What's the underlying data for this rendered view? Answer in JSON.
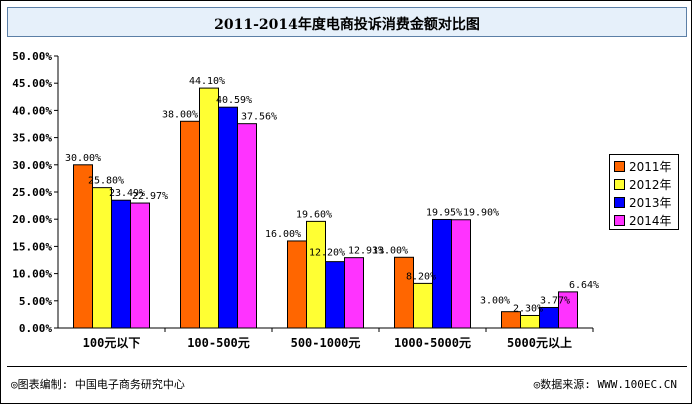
{
  "chart_data": {
    "type": "bar",
    "title": "2011-2014年度电商投诉消费金额对比图",
    "categories": [
      "100元以下",
      "100-500元",
      "500-1000元",
      "1000-5000元",
      "5000元以上"
    ],
    "series": [
      {
        "name": "2011年",
        "color": "#ff6600",
        "values": [
          30.0,
          38.0,
          16.0,
          13.0,
          3.0
        ],
        "labels": [
          "30.00%",
          "38.00%",
          "16.00%",
          "13.00%",
          "3.00%"
        ]
      },
      {
        "name": "2012年",
        "color": "#ffff33",
        "values": [
          25.8,
          44.1,
          19.6,
          8.2,
          2.3
        ],
        "labels": [
          "25.80%",
          "44.10%",
          "19.60%",
          "8.20%",
          "2.30%"
        ]
      },
      {
        "name": "2013年",
        "color": "#0000ff",
        "values": [
          23.49,
          40.59,
          12.2,
          19.95,
          3.77
        ],
        "labels": [
          "23.49%",
          "40.59%",
          "12.20%",
          "19.95%",
          "3.77%"
        ]
      },
      {
        "name": "2014年",
        "color": "#ff33ff",
        "values": [
          22.97,
          37.56,
          12.93,
          19.9,
          6.64
        ],
        "labels": [
          "22.97%",
          "37.56%",
          "12.93%",
          "19.90%",
          "6.64%"
        ]
      }
    ],
    "ylim": [
      0,
      50
    ],
    "yticks": [
      "0.00%",
      "5.00%",
      "10.00%",
      "15.00%",
      "20.00%",
      "25.00%",
      "30.00%",
      "35.00%",
      "40.00%",
      "45.00%",
      "50.00%"
    ],
    "grid": false,
    "legend_position": "right"
  },
  "footer": {
    "left": "◎图表编制: 中国电子商务研究中心",
    "right": "◎数据来源: WWW.100EC.CN"
  }
}
